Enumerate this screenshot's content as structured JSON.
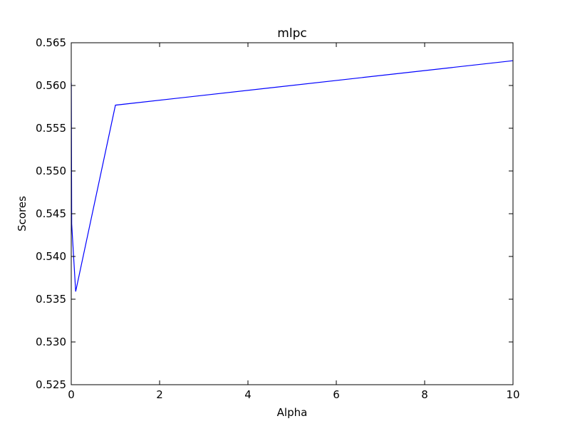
{
  "chart_data": {
    "type": "line",
    "title": "mlpc",
    "xlabel": "Alpha",
    "ylabel": "Scores",
    "xlim": [
      0,
      10
    ],
    "ylim": [
      0.525,
      0.565
    ],
    "xticks": [
      {
        "value": 0,
        "label": "0"
      },
      {
        "value": 2,
        "label": "2"
      },
      {
        "value": 4,
        "label": "4"
      },
      {
        "value": 6,
        "label": "6"
      },
      {
        "value": 8,
        "label": "8"
      },
      {
        "value": 10,
        "label": "10"
      }
    ],
    "yticks": [
      {
        "value": 0.525,
        "label": "0.525"
      },
      {
        "value": 0.53,
        "label": "0.530"
      },
      {
        "value": 0.535,
        "label": "0.535"
      },
      {
        "value": 0.54,
        "label": "0.540"
      },
      {
        "value": 0.545,
        "label": "0.545"
      },
      {
        "value": 0.55,
        "label": "0.550"
      },
      {
        "value": 0.555,
        "label": "0.555"
      },
      {
        "value": 0.56,
        "label": "0.560"
      },
      {
        "value": 0.565,
        "label": "0.565"
      }
    ],
    "grid": false,
    "series": [
      {
        "color": "#0000ff",
        "x": [
          0.001,
          0.01,
          0.1,
          1,
          10
        ],
        "y": [
          0.5603,
          0.5438,
          0.5359,
          0.5577,
          0.5629
        ]
      }
    ]
  }
}
